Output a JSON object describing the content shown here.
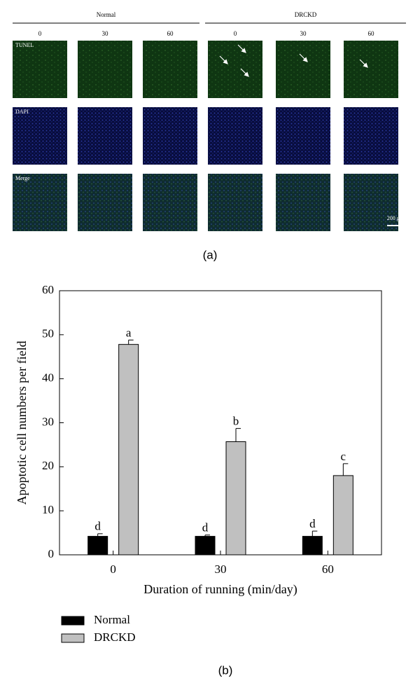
{
  "panel_a": {
    "groups": [
      "Normal",
      "DRCKD"
    ],
    "columns": [
      "0",
      "30",
      "60",
      "0",
      "30",
      "60"
    ],
    "rows": [
      "TUNEL",
      "DAPI",
      "Merge"
    ],
    "scale_bar": "200 μm",
    "caption": "(a)"
  },
  "chart_data": {
    "type": "bar",
    "ylabel": "Apoptotic cell numbers per field",
    "xlabel": "Duration of running (min/day)",
    "categories": [
      "0",
      "30",
      "60"
    ],
    "series": [
      {
        "name": "Normal",
        "color": "#000000",
        "values": [
          4.2,
          4.2,
          4.2
        ],
        "errors": [
          0.6,
          0.3,
          1.2
        ],
        "annotations": [
          "d",
          "d",
          "d"
        ]
      },
      {
        "name": "DRCKD",
        "color": "#c0c0c0",
        "values": [
          47.8,
          25.7,
          18.0
        ],
        "errors": [
          1.0,
          3.0,
          2.7
        ],
        "annotations": [
          "a",
          "b",
          "c"
        ]
      }
    ],
    "ylim": [
      0,
      60
    ],
    "yticks": [
      0,
      10,
      20,
      30,
      40,
      50,
      60
    ],
    "legend": "bottom-left",
    "caption": "(b)"
  }
}
